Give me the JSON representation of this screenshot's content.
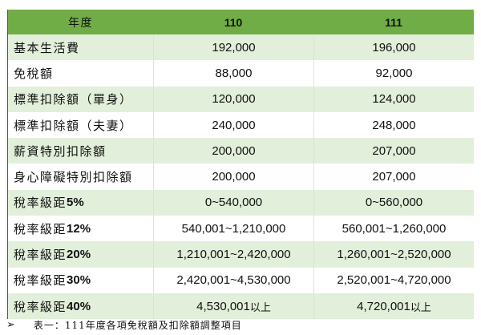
{
  "table": {
    "header": {
      "label": "年度",
      "col1": "110",
      "col2": "111"
    },
    "rows": [
      {
        "label": "基本生活費",
        "pct": "",
        "v110": "192,000",
        "v111": "196,000",
        "s110": "",
        "s111": ""
      },
      {
        "label": "免稅額",
        "pct": "",
        "v110": "88,000",
        "v111": "92,000",
        "s110": "",
        "s111": ""
      },
      {
        "label": "標準扣除額（單身）",
        "pct": "",
        "v110": "120,000",
        "v111": "124,000",
        "s110": "",
        "s111": ""
      },
      {
        "label": "標準扣除額（夫妻）",
        "pct": "",
        "v110": "240,000",
        "v111": "248,000",
        "s110": "",
        "s111": ""
      },
      {
        "label": "薪資特別扣除額",
        "pct": "",
        "v110": "200,000",
        "v111": "207,000",
        "s110": "",
        "s111": ""
      },
      {
        "label": "身心障礙特別扣除額",
        "pct": "",
        "v110": "200,000",
        "v111": "207,000",
        "s110": "",
        "s111": ""
      },
      {
        "label": "稅率級距",
        "pct": "5%",
        "v110": "0~540,000",
        "v111": "0~560,000",
        "s110": "",
        "s111": ""
      },
      {
        "label": "稅率級距",
        "pct": "12%",
        "v110": "540,001~1,210,000",
        "v111": "560,001~1,260,000",
        "s110": "",
        "s111": ""
      },
      {
        "label": "稅率級距",
        "pct": "20%",
        "v110": "1,210,001~2,420,000",
        "v111": "1,260,001~2,520,000",
        "s110": "",
        "s111": ""
      },
      {
        "label": "稅率級距",
        "pct": "30%",
        "v110": "2,420,001~4,530,000",
        "v111": "2,520,001~4,720,000",
        "s110": "",
        "s111": ""
      },
      {
        "label": "稅率級距",
        "pct": "40%",
        "v110": "4,530,001",
        "v111": "4,720,001",
        "s110": "以上",
        "s111": "以上"
      }
    ]
  },
  "caption": {
    "bullet": "➢",
    "text": "表一：111年度各項免稅額及扣除額調整項目"
  },
  "colors": {
    "header_bg": "#70ad47",
    "band_bg": "#e2efda"
  }
}
